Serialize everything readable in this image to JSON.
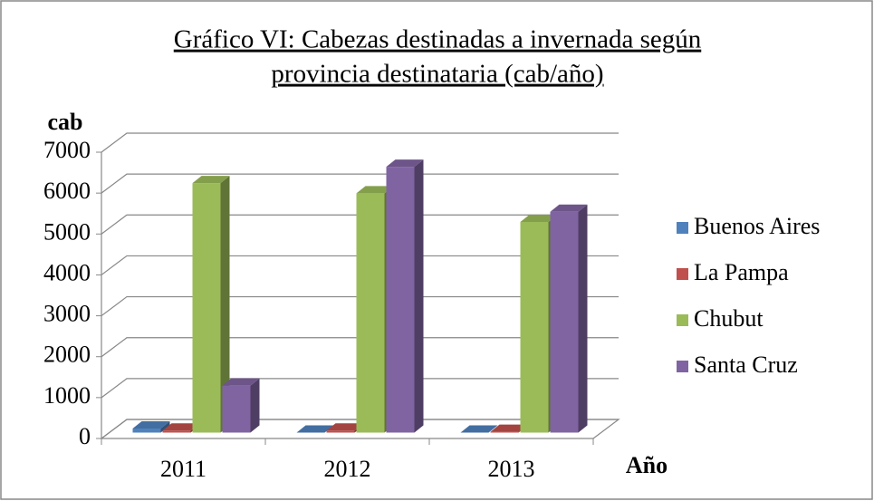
{
  "chart_data": {
    "type": "bar3d",
    "title": [
      "Gráfico VI: Cabezas destinadas a invernada según",
      "provincia destinataria (cab/año)"
    ],
    "ylabel": "cab",
    "xlabel": "Año",
    "categories": [
      "2011",
      "2012",
      "2013"
    ],
    "series": [
      {
        "name": "Buenos Aires",
        "color": "#4f81bd",
        "values": [
          100,
          0,
          0
        ]
      },
      {
        "name": "La Pampa",
        "color": "#c0504d",
        "values": [
          50,
          50,
          20
        ]
      },
      {
        "name": "Chubut",
        "color": "#9bbb59",
        "values": [
          6100,
          5850,
          5150
        ]
      },
      {
        "name": "Santa Cruz",
        "color": "#8064a2",
        "values": [
          1150,
          6500,
          5400
        ]
      }
    ],
    "ylim": [
      0,
      7000
    ],
    "yticks": [
      0,
      1000,
      2000,
      3000,
      4000,
      5000,
      6000,
      7000
    ],
    "grid": true,
    "legend": "right"
  }
}
